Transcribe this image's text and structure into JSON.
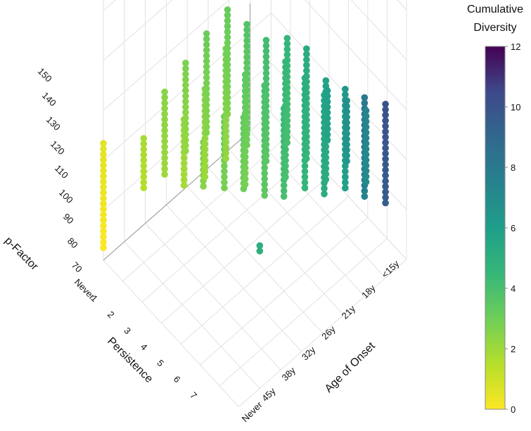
{
  "chart_data": {
    "type": "scatter3d",
    "title": "",
    "axes": {
      "z": {
        "label": "p-Factor",
        "ticks": [
          "70",
          "80",
          "90",
          "100",
          "110",
          "120",
          "130",
          "140",
          "150"
        ],
        "range": [
          70,
          150
        ]
      },
      "persistence": {
        "label": "Persistence",
        "ticks": [
          "Never",
          "1",
          "2",
          "3",
          "4",
          "5",
          "6",
          "7"
        ]
      },
      "onset": {
        "label": "Age of Onset",
        "ticks": [
          "<15y",
          "18y",
          "21y",
          "26y",
          "32y",
          "38y",
          "45y",
          "Never"
        ]
      }
    },
    "colorbar": {
      "title_line1": "Cumulative",
      "title_line2": "Diversity",
      "ticks": [
        "0",
        "2",
        "4",
        "6",
        "8",
        "10",
        "12"
      ],
      "range": [
        0,
        12
      ],
      "colorscale": "viridis"
    },
    "series": [
      {
        "name": "persistence-0",
        "persistence": 0,
        "onset": 7,
        "z_min": 75,
        "z_max": 118,
        "diversity": 0
      },
      {
        "name": "persistence-1-onset-6",
        "persistence": 1,
        "onset": 6,
        "z_min": 100,
        "z_max": 120,
        "diversity": 1.5
      },
      {
        "name": "persistence-1-onset-0",
        "persistence": 1,
        "onset": 0,
        "z_min": 125,
        "z_max": 128,
        "diversity": 5
      },
      {
        "name": "persistence-2-onset-6",
        "persistence": 2,
        "onset": 6,
        "z_min": 98,
        "z_max": 133,
        "diversity": 2
      },
      {
        "name": "persistence-2-onset-5",
        "persistence": 2,
        "onset": 5,
        "z_min": 102,
        "z_max": 130,
        "diversity": 1.8
      },
      {
        "name": "persistence-2-onset-4",
        "persistence": 2,
        "onset": 4,
        "z_min": 110,
        "z_max": 128,
        "diversity": 2.5
      },
      {
        "name": "persistence-3-onset-6",
        "persistence": 3,
        "onset": 6,
        "z_min": 100,
        "z_max": 136,
        "diversity": 2.2
      },
      {
        "name": "persistence-3-onset-5",
        "persistence": 3,
        "onset": 5,
        "z_min": 98,
        "z_max": 135,
        "diversity": 2
      },
      {
        "name": "persistence-3-onset-4",
        "persistence": 3,
        "onset": 4,
        "z_min": 102,
        "z_max": 132,
        "diversity": 2.8
      },
      {
        "name": "persistence-3-onset-3",
        "persistence": 3,
        "onset": 3,
        "z_min": 110,
        "z_max": 140,
        "diversity": 3
      },
      {
        "name": "persistence-4-onset-6",
        "persistence": 4,
        "onset": 6,
        "z_min": 100,
        "z_max": 140,
        "diversity": 2.5
      },
      {
        "name": "persistence-4-onset-5",
        "persistence": 4,
        "onset": 5,
        "z_min": 98,
        "z_max": 142,
        "diversity": 2.2
      },
      {
        "name": "persistence-4-onset-4",
        "persistence": 4,
        "onset": 4,
        "z_min": 96,
        "z_max": 140,
        "diversity": 2.8
      },
      {
        "name": "persistence-4-onset-3",
        "persistence": 4,
        "onset": 3,
        "z_min": 100,
        "z_max": 145,
        "diversity": 3.4
      },
      {
        "name": "persistence-4-onset-2",
        "persistence": 4,
        "onset": 2,
        "z_min": 108,
        "z_max": 145,
        "diversity": 4
      },
      {
        "name": "persistence-5-onset-6",
        "persistence": 5,
        "onset": 6,
        "z_min": 100,
        "z_max": 142,
        "diversity": 2.6
      },
      {
        "name": "persistence-5-onset-5",
        "persistence": 5,
        "onset": 5,
        "z_min": 96,
        "z_max": 145,
        "diversity": 3
      },
      {
        "name": "persistence-5-onset-4",
        "persistence": 5,
        "onset": 4,
        "z_min": 98,
        "z_max": 148,
        "diversity": 3.5
      },
      {
        "name": "persistence-5-onset-3",
        "persistence": 5,
        "onset": 3,
        "z_min": 100,
        "z_max": 148,
        "diversity": 4
      },
      {
        "name": "persistence-5-onset-2",
        "persistence": 5,
        "onset": 2,
        "z_min": 104,
        "z_max": 148,
        "diversity": 4.5
      },
      {
        "name": "persistence-5-onset-1",
        "persistence": 5,
        "onset": 1,
        "z_min": 110,
        "z_max": 150,
        "diversity": 5.2
      },
      {
        "name": "persistence-6-onset-4",
        "persistence": 6,
        "onset": 4,
        "z_min": 98,
        "z_max": 140,
        "diversity": 4
      },
      {
        "name": "persistence-6-onset-3",
        "persistence": 6,
        "onset": 3,
        "z_min": 100,
        "z_max": 145,
        "diversity": 4.6
      },
      {
        "name": "persistence-6-onset-2",
        "persistence": 6,
        "onset": 2,
        "z_min": 100,
        "z_max": 140,
        "diversity": 5.2
      },
      {
        "name": "persistence-6-onset-1",
        "persistence": 6,
        "onset": 1,
        "z_min": 105,
        "z_max": 145,
        "diversity": 5.8
      },
      {
        "name": "persistence-6-onset-0",
        "persistence": 6,
        "onset": 0,
        "z_min": 110,
        "z_max": 150,
        "diversity": 7.5
      },
      {
        "name": "persistence-7-onset-3",
        "persistence": 7,
        "onset": 3,
        "z_min": 100,
        "z_max": 120,
        "diversity": 5.6
      },
      {
        "name": "persistence-7-onset-2",
        "persistence": 7,
        "onset": 2,
        "z_min": 100,
        "z_max": 125,
        "diversity": 6.4
      },
      {
        "name": "persistence-7-onset-1",
        "persistence": 7,
        "onset": 1,
        "z_min": 100,
        "z_max": 130,
        "diversity": 7
      },
      {
        "name": "persistence-7-onset-0",
        "persistence": 7,
        "onset": 0,
        "z_min": 100,
        "z_max": 140,
        "diversity": 9.5
      }
    ]
  }
}
